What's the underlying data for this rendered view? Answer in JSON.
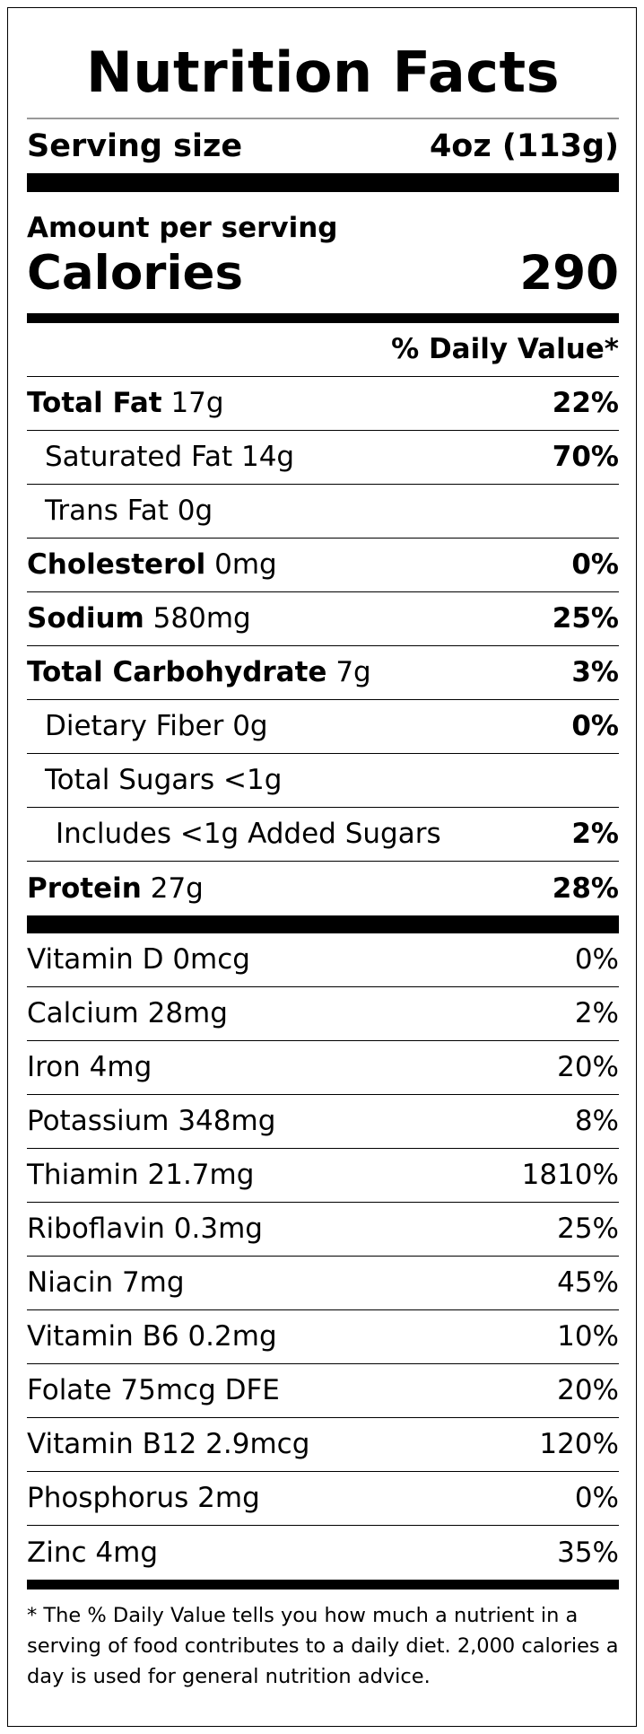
{
  "title": "Nutrition Facts",
  "serving": {
    "label": "Serving size",
    "value": "4oz (113g)"
  },
  "amount_per_serving": "Amount per serving",
  "calories": {
    "label": "Calories",
    "value": "290"
  },
  "dv_header": "% Daily Value*",
  "nutrients": [
    {
      "name": "Total Fat",
      "amount": "17g",
      "dv": "22%"
    },
    {
      "name": "Saturated Fat 14g",
      "dv": "70%"
    },
    {
      "name": "Trans Fat 0g",
      "dv": ""
    },
    {
      "name": "Cholesterol",
      "amount": "0mg",
      "dv": "0%"
    },
    {
      "name": "Sodium",
      "amount": "580mg",
      "dv": "25%"
    },
    {
      "name": "Total Carbohydrate",
      "amount": "7g",
      "dv": "3%"
    },
    {
      "name": "Dietary Fiber 0g",
      "dv": "0%"
    },
    {
      "name": "Total Sugars <1g",
      "dv": ""
    },
    {
      "name": "Includes <1g Added Sugars",
      "dv": "2%"
    },
    {
      "name": "Protein",
      "amount": "27g",
      "dv": "28%"
    }
  ],
  "vitamins": [
    {
      "name": "Vitamin D 0mcg",
      "dv": "0%"
    },
    {
      "name": "Calcium 28mg",
      "dv": "2%"
    },
    {
      "name": "Iron 4mg",
      "dv": "20%"
    },
    {
      "name": "Potassium 348mg",
      "dv": "8%"
    },
    {
      "name": "Thiamin 21.7mg",
      "dv": "1810%"
    },
    {
      "name": "Riboflavin 0.3mg",
      "dv": "25%"
    },
    {
      "name": "Niacin 7mg",
      "dv": "45%"
    },
    {
      "name": "Vitamin B6 0.2mg",
      "dv": "10%"
    },
    {
      "name": "Folate 75mcg DFE",
      "dv": "20%"
    },
    {
      "name": "Vitamin B12 2.9mcg",
      "dv": "120%"
    },
    {
      "name": "Phosphorus 2mg",
      "dv": "0%"
    },
    {
      "name": "Zinc 4mg",
      "dv": "35%"
    }
  ],
  "footnote": "* The % Daily Value tells you how much a nutrient in a serving of food contributes to a daily diet. 2,000 calories a day is used for general nutrition advice."
}
